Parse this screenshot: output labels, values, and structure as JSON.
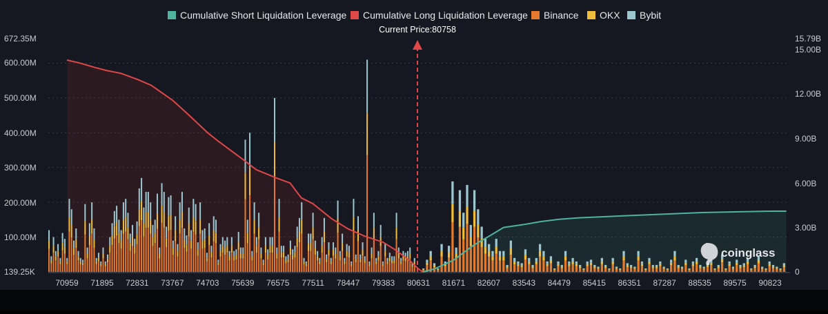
{
  "chart_data": {
    "type": "bar",
    "watermark": "coinglass",
    "current_price_label": "Current Price:80758",
    "current_price": 80758,
    "colors": {
      "background": "#161821",
      "short_line": "#4fb39e",
      "long_line": "#e04848",
      "binance": "#e57a2e",
      "okx": "#f0bd3a",
      "bybit": "#9cc6cf",
      "grid": "#3a3d4a"
    },
    "legend": [
      {
        "key": "short",
        "label": "Cumulative Short Liquidation Leverage",
        "color": "#4fb39e"
      },
      {
        "key": "long",
        "label": "Cumulative Long Liquidation Leverage",
        "color": "#e04848"
      },
      {
        "key": "binance",
        "label": "Binance",
        "color": "#e57a2e"
      },
      {
        "key": "okx",
        "label": "OKX",
        "color": "#f0bd3a"
      },
      {
        "key": "bybit",
        "label": "Bybit",
        "color": "#9cc6cf"
      }
    ],
    "x_ticks": [
      "70959",
      "71895",
      "72831",
      "73767",
      "74703",
      "75639",
      "76575",
      "77511",
      "78447",
      "79383",
      "80631",
      "81671",
      "82607",
      "83543",
      "84479",
      "85415",
      "86351",
      "87287",
      "88535",
      "89575",
      "90823"
    ],
    "y_left": {
      "ticks": [
        "672.35M",
        "600.00M",
        "500.00M",
        "400.00M",
        "300.00M",
        "200.00M",
        "100.00M",
        "139.25K"
      ],
      "min": 0.139,
      "max": 672.35,
      "unit": "M"
    },
    "y_right": {
      "ticks": [
        "15.79B",
        "15.00B",
        "12.00B",
        "9.00B",
        "6.00B",
        "3.00B",
        "0"
      ],
      "min": 0,
      "max": 15.79,
      "unit": "B"
    },
    "bar_heights_M": [
      120,
      45,
      100,
      60,
      80,
      40,
      112,
      95,
      40,
      210,
      180,
      90,
      125,
      60,
      40,
      35,
      195,
      70,
      140,
      200,
      125,
      40,
      55,
      30,
      70,
      30,
      50,
      100,
      140,
      175,
      190,
      150,
      120,
      200,
      210,
      170,
      110,
      135,
      95,
      145,
      240,
      270,
      185,
      230,
      230,
      200,
      135,
      150,
      225,
      70,
      255,
      230,
      130,
      215,
      220,
      90,
      160,
      80,
      200,
      230,
      125,
      105,
      185,
      120,
      210,
      195,
      85,
      200,
      120,
      125,
      55,
      140,
      75,
      160,
      150,
      35,
      80,
      100,
      90,
      100,
      60,
      100,
      60,
      65,
      115,
      70,
      70,
      380,
      150,
      400,
      60,
      200,
      100,
      170,
      70,
      35,
      100,
      65,
      100,
      100,
      500,
      70,
      210,
      75,
      75,
      45,
      50,
      90,
      65,
      75,
      130,
      155,
      200,
      40,
      30,
      110,
      110,
      170,
      90,
      60,
      40,
      100,
      155,
      50,
      85,
      40,
      85,
      70,
      205,
      60,
      110,
      40,
      80,
      75,
      30,
      210,
      50,
      160,
      50,
      85,
      45,
      610,
      30,
      70,
      170,
      40,
      60,
      135,
      30,
      80,
      40,
      55,
      45,
      45,
      170,
      70,
      40,
      60,
      55,
      60,
      70,
      25,
      40
    ],
    "bar_heights_right": [
      10,
      35,
      60,
      25,
      10,
      80,
      30,
      75,
      260,
      70,
      235,
      170,
      250,
      135,
      235,
      180,
      130,
      95,
      80,
      60,
      95,
      60,
      60,
      20,
      90,
      40,
      30,
      25,
      65,
      40,
      20,
      40,
      80,
      60,
      30,
      45,
      10,
      30,
      20,
      60,
      30,
      40,
      30,
      20,
      10,
      30,
      35,
      20,
      15,
      40,
      20,
      10,
      40,
      15,
      10,
      60,
      25,
      20,
      15,
      60,
      30,
      10,
      40,
      20,
      20,
      30,
      15,
      10,
      35,
      60,
      20,
      15,
      35,
      10,
      30,
      40,
      20,
      15,
      25,
      35,
      10,
      20,
      50,
      10,
      30,
      15,
      35,
      20,
      25,
      40,
      10,
      20,
      45,
      15,
      10,
      30,
      20,
      15,
      10,
      25
    ],
    "long_curve_B": [
      [
        70959,
        14.3
      ],
      [
        71300,
        14.1
      ],
      [
        71700,
        13.8
      ],
      [
        72000,
        13.6
      ],
      [
        72400,
        13.4
      ],
      [
        72831,
        13.0
      ],
      [
        73200,
        12.6
      ],
      [
        73767,
        11.6
      ],
      [
        74200,
        10.6
      ],
      [
        74703,
        9.4
      ],
      [
        75000,
        8.8
      ],
      [
        75639,
        7.6
      ],
      [
        76000,
        6.9
      ],
      [
        76575,
        6.3
      ],
      [
        76900,
        6.0
      ],
      [
        77200,
        5.0
      ],
      [
        77511,
        4.6
      ],
      [
        78000,
        3.6
      ],
      [
        78447,
        2.9
      ],
      [
        78900,
        2.4
      ],
      [
        79383,
        2.0
      ],
      [
        79800,
        1.5
      ],
      [
        80300,
        0.8
      ],
      [
        80631,
        0.2
      ],
      [
        80758,
        0.0
      ]
    ],
    "short_curve_B": [
      [
        80758,
        0.0
      ],
      [
        81100,
        0.2
      ],
      [
        81671,
        0.8
      ],
      [
        82200,
        1.8
      ],
      [
        82607,
        2.4
      ],
      [
        83000,
        3.0
      ],
      [
        83543,
        3.2
      ],
      [
        84000,
        3.4
      ],
      [
        84479,
        3.55
      ],
      [
        85000,
        3.65
      ],
      [
        85415,
        3.7
      ],
      [
        86351,
        3.8
      ],
      [
        87287,
        3.9
      ],
      [
        88535,
        4.0
      ],
      [
        89575,
        4.05
      ],
      [
        90823,
        4.1
      ],
      [
        91400,
        4.1
      ]
    ]
  }
}
